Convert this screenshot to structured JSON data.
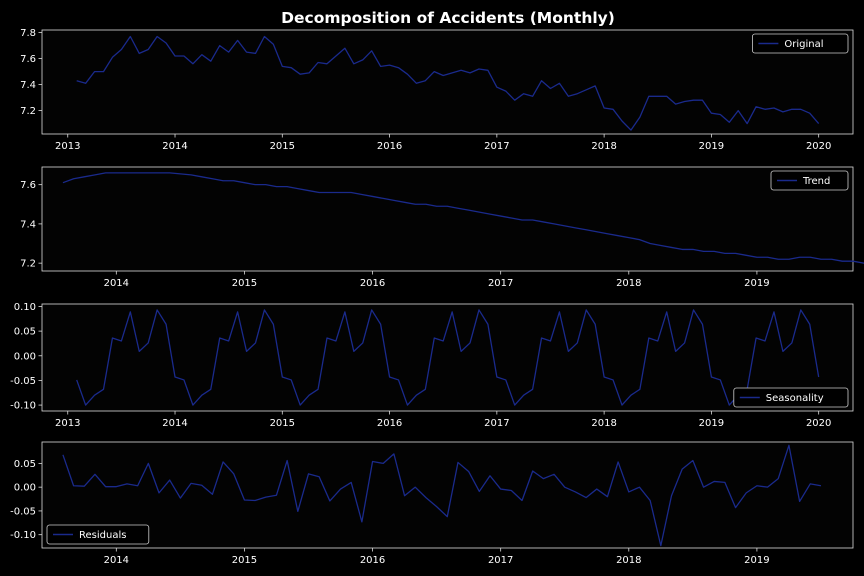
{
  "title": "Decomposition of Accidents (Monthly)",
  "colors": {
    "background": "#000000",
    "axes": "#dcdcdc",
    "text": "#ffffff",
    "line": "#1a2a8c"
  },
  "chart_data": [
    {
      "type": "line",
      "series": [
        {
          "name": "Original",
          "start": "2013-02",
          "values": [
            7.43,
            7.41,
            7.5,
            7.5,
            7.61,
            7.67,
            7.77,
            7.64,
            7.67,
            7.77,
            7.72,
            7.62,
            7.62,
            7.56,
            7.63,
            7.58,
            7.7,
            7.65,
            7.74,
            7.65,
            7.64,
            7.77,
            7.71,
            7.54,
            7.53,
            7.48,
            7.49,
            7.57,
            7.56,
            7.62,
            7.68,
            7.56,
            7.59,
            7.66,
            7.54,
            7.55,
            7.53,
            7.48,
            7.41,
            7.43,
            7.5,
            7.47,
            7.49,
            7.51,
            7.49,
            7.52,
            7.51,
            7.38,
            7.35,
            7.28,
            7.33,
            7.31,
            7.43,
            7.37,
            7.41,
            7.31,
            7.33,
            7.36,
            7.39,
            7.22,
            7.21,
            7.12,
            7.05,
            7.15,
            7.31,
            7.31,
            7.31,
            7.25,
            7.27,
            7.28,
            7.28,
            7.18,
            7.17,
            7.11,
            7.2,
            7.1,
            7.23,
            7.21,
            7.22,
            7.19,
            7.21,
            7.21,
            7.18,
            7.1
          ]
        }
      ],
      "legend": "upper-right",
      "ylim": [
        7.02,
        7.82
      ],
      "yticks": [
        "7.2",
        "7.4",
        "7.6",
        "7.8"
      ],
      "xticks": [
        "2013",
        "2014",
        "2015",
        "2016",
        "2017",
        "2018",
        "2019",
        "2020"
      ]
    },
    {
      "type": "line",
      "series": [
        {
          "name": "Trend",
          "start": "2013-08",
          "values": [
            7.61,
            7.63,
            7.64,
            7.65,
            7.66,
            7.66,
            7.66,
            7.66,
            7.66,
            7.66,
            7.66,
            7.655,
            7.65,
            7.64,
            7.63,
            7.62,
            7.62,
            7.61,
            7.6,
            7.6,
            7.59,
            7.59,
            7.58,
            7.57,
            7.56,
            7.56,
            7.56,
            7.56,
            7.55,
            7.54,
            7.53,
            7.52,
            7.51,
            7.5,
            7.5,
            7.49,
            7.49,
            7.48,
            7.47,
            7.46,
            7.45,
            7.44,
            7.43,
            7.42,
            7.42,
            7.41,
            7.4,
            7.39,
            7.38,
            7.37,
            7.36,
            7.35,
            7.34,
            7.33,
            7.32,
            7.3,
            7.29,
            7.28,
            7.27,
            7.27,
            7.26,
            7.26,
            7.25,
            7.25,
            7.24,
            7.23,
            7.23,
            7.22,
            7.22,
            7.23,
            7.23,
            7.22,
            7.22,
            7.21,
            7.21,
            7.2,
            7.19,
            7.18
          ]
        }
      ],
      "legend": "upper-right",
      "ylim": [
        7.16,
        7.69
      ],
      "yticks": [
        "7.2",
        "7.4",
        "7.6"
      ],
      "xticks": [
        "2014",
        "2015",
        "2016",
        "2017",
        "2018",
        "2019"
      ]
    },
    {
      "type": "line",
      "series": [
        {
          "name": "Seasonality",
          "start": "2013-02",
          "pattern": [
            -0.049,
            -0.1,
            -0.08,
            -0.068,
            0.036,
            0.03,
            0.089,
            0.009,
            0.026,
            0.093,
            0.064,
            -0.043
          ],
          "values_count": 84
        }
      ],
      "legend": "lower-right",
      "ylim": [
        -0.112,
        0.105
      ],
      "yticks": [
        "0.10",
        "0.05",
        "0.00",
        "-0.05",
        "-0.10"
      ],
      "xticks": [
        "2013",
        "2014",
        "2015",
        "2016",
        "2017",
        "2018",
        "2019",
        "2020"
      ]
    },
    {
      "type": "line",
      "series": [
        {
          "name": "Residuals",
          "start": "2013-08",
          "values": [
            0.068,
            0.003,
            0.002,
            0.027,
            0.001,
            0.001,
            0.007,
            0.003,
            0.05,
            -0.012,
            0.015,
            -0.023,
            0.008,
            0.004,
            -0.015,
            0.053,
            0.028,
            -0.027,
            -0.028,
            -0.021,
            -0.017,
            0.056,
            -0.051,
            0.028,
            0.022,
            -0.029,
            -0.004,
            0.01,
            -0.073,
            0.054,
            0.05,
            0.07,
            -0.018,
            0.0,
            -0.022,
            -0.041,
            -0.062,
            0.052,
            0.033,
            -0.009,
            0.024,
            -0.004,
            -0.007,
            -0.028,
            0.034,
            0.018,
            0.027,
            0.0,
            -0.01,
            -0.022,
            -0.004,
            -0.02,
            0.053,
            -0.01,
            0.0,
            -0.028,
            -0.123,
            -0.018,
            0.038,
            0.056,
            0.0,
            0.012,
            0.01,
            -0.043,
            -0.012,
            0.003,
            0.0,
            0.018,
            0.088,
            -0.03,
            0.007,
            0.003
          ]
        }
      ],
      "legend": "lower-left",
      "ylim": [
        -0.128,
        0.095
      ],
      "yticks": [
        "0.05",
        "0.00",
        "-0.05",
        "-0.10"
      ],
      "xticks": [
        "2014",
        "2015",
        "2016",
        "2017",
        "2018",
        "2019"
      ]
    }
  ]
}
